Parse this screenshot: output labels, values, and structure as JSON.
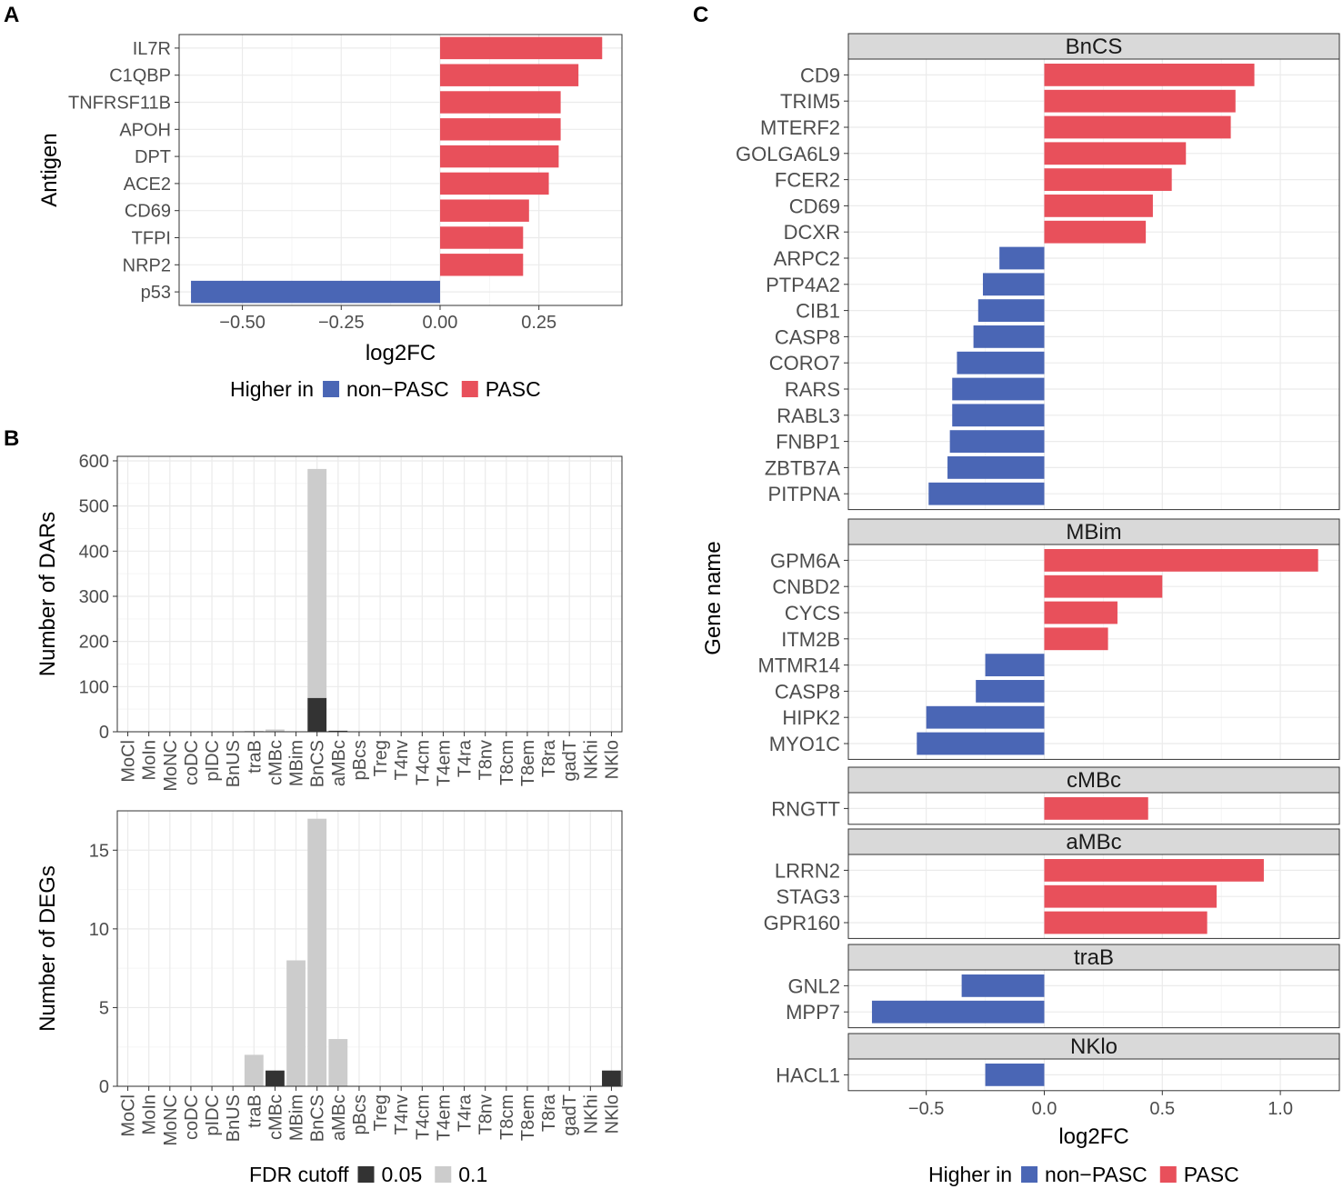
{
  "colors": {
    "pasc": "#E8505B",
    "nonpasc": "#4A66B5",
    "fdr005": "#333333",
    "fdr01": "#CCCCCC",
    "strip": "#D9D9D9"
  },
  "panels": {
    "a": "A",
    "b": "B",
    "c": "C"
  },
  "chart_data": [
    {
      "id": "A",
      "type": "bar",
      "orientation": "horizontal",
      "xlabel": "log2FC",
      "ylabel": "Antigen",
      "xlim": [
        -0.66,
        0.46
      ],
      "xticks": [
        -0.5,
        -0.25,
        0,
        0.25
      ],
      "xtick_labels": [
        "−0.50",
        "−0.25",
        "0.00",
        "0.25"
      ],
      "categories": [
        "IL7R",
        "C1QBP",
        "TNFRSF11B",
        "APOH",
        "DPT",
        "ACE2",
        "CD69",
        "TFPI",
        "NRP2",
        "p53"
      ],
      "values": [
        0.41,
        0.35,
        0.305,
        0.305,
        0.3,
        0.275,
        0.225,
        0.21,
        0.21,
        -0.63
      ],
      "legend": {
        "title": "Higher in",
        "items": [
          "non−PASC",
          "PASC"
        ]
      }
    },
    {
      "id": "B1",
      "type": "bar",
      "stacked": true,
      "ylabel": "Number of DARs",
      "ylim": [
        0,
        610
      ],
      "yticks": [
        0,
        100,
        200,
        300,
        400,
        500,
        600
      ],
      "categories": [
        "MoCl",
        "MoIn",
        "MoNC",
        "coDC",
        "pIDC",
        "BnUS",
        "traB",
        "cMBc",
        "MBim",
        "BnCS",
        "aMBc",
        "pBcs",
        "Treg",
        "T4nv",
        "T4cm",
        "T4em",
        "T4ra",
        "T8nv",
        "T8cm",
        "T8em",
        "T8ra",
        "gadT",
        "NKhi",
        "NKlo"
      ],
      "series": [
        {
          "name": "0.05",
          "values": [
            0,
            0,
            0,
            0,
            0,
            0,
            0,
            0,
            0,
            75,
            2,
            0,
            0,
            0,
            0,
            0,
            0,
            0,
            0,
            0,
            0,
            0,
            0,
            0
          ]
        },
        {
          "name": "0.1",
          "values": [
            0,
            0,
            0,
            0,
            0,
            0,
            2,
            5,
            0,
            507,
            1,
            0,
            0,
            0,
            0,
            0,
            0,
            0,
            1,
            0,
            0,
            0,
            0,
            0
          ]
        }
      ]
    },
    {
      "id": "B2",
      "type": "bar",
      "stacked": true,
      "ylabel": "Number of DEGs",
      "ylim": [
        0,
        17.5
      ],
      "yticks": [
        0,
        5,
        10,
        15
      ],
      "categories": [
        "MoCl",
        "MoIn",
        "MoNC",
        "coDC",
        "pIDC",
        "BnUS",
        "traB",
        "cMBc",
        "MBim",
        "BnCS",
        "aMBc",
        "pBcs",
        "Treg",
        "T4nv",
        "T4cm",
        "T4em",
        "T4ra",
        "T8nv",
        "T8cm",
        "T8em",
        "T8ra",
        "gadT",
        "NKhi",
        "NKlo"
      ],
      "series": [
        {
          "name": "0.05",
          "values": [
            0,
            0,
            0,
            0,
            0,
            0,
            0,
            1,
            0,
            0,
            0,
            0,
            0,
            0,
            0,
            0,
            0,
            0,
            0,
            0,
            0,
            0,
            0,
            1
          ]
        },
        {
          "name": "0.1",
          "values": [
            0,
            0,
            0,
            0,
            0,
            0,
            2,
            0,
            8,
            17,
            3,
            0,
            0,
            0,
            0,
            0,
            0,
            0,
            0,
            0,
            0,
            0,
            0,
            0
          ]
        }
      ],
      "legend": {
        "title": "FDR cutoff",
        "items": [
          "0.05",
          "0.1"
        ]
      }
    },
    {
      "id": "C",
      "type": "bar",
      "orientation": "horizontal",
      "faceted": true,
      "xlabel": "log2FC",
      "ylabel": "Gene name",
      "xlim": [
        -0.83,
        1.25
      ],
      "xticks": [
        -0.5,
        0,
        0.5,
        1
      ],
      "xtick_labels": [
        "−0.5",
        "0.0",
        "0.5",
        "1.0"
      ],
      "facets": [
        {
          "name": "BnCS",
          "categories": [
            "CD9",
            "TRIM5",
            "MTERF2",
            "GOLGA6L9",
            "FCER2",
            "CD69",
            "DCXR",
            "ARPC2",
            "PTP4A2",
            "CIB1",
            "CASP8",
            "CORO7",
            "RARS",
            "RABL3",
            "FNBP1",
            "ZBTB7A",
            "PITPNA"
          ],
          "values": [
            0.89,
            0.81,
            0.79,
            0.6,
            0.54,
            0.46,
            0.43,
            -0.19,
            -0.26,
            -0.28,
            -0.3,
            -0.37,
            -0.39,
            -0.39,
            -0.4,
            -0.41,
            -0.49
          ]
        },
        {
          "name": "MBim",
          "categories": [
            "GPM6A",
            "CNBD2",
            "CYCS",
            "ITM2B",
            "MTMR14",
            "CASP8",
            "HIPK2",
            "MYO1C"
          ],
          "values": [
            1.16,
            0.5,
            0.31,
            0.27,
            -0.25,
            -0.29,
            -0.5,
            -0.54
          ]
        },
        {
          "name": "cMBc",
          "categories": [
            "RNGTT"
          ],
          "values": [
            0.44
          ]
        },
        {
          "name": "aMBc",
          "categories": [
            "LRRN2",
            "STAG3",
            "GPR160"
          ],
          "values": [
            0.93,
            0.73,
            0.69
          ]
        },
        {
          "name": "traB",
          "categories": [
            "GNL2",
            "MPP7"
          ],
          "values": [
            -0.35,
            -0.73
          ]
        },
        {
          "name": "NKlo",
          "categories": [
            "HACL1"
          ],
          "values": [
            -0.25
          ]
        }
      ],
      "legend": {
        "title": "Higher in",
        "items": [
          "non−PASC",
          "PASC"
        ]
      }
    }
  ]
}
